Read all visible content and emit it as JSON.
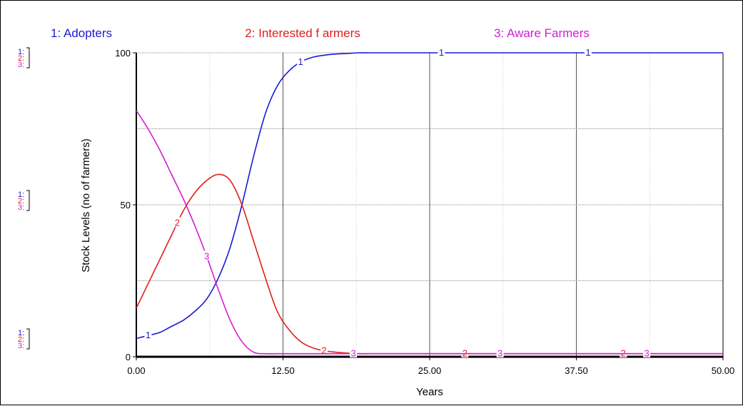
{
  "chart_data": {
    "type": "line",
    "title": "",
    "xlabel": "Years",
    "ylabel": "Stock Levels (no of farmers)",
    "xlim": [
      0,
      50
    ],
    "ylim": [
      0,
      100
    ],
    "x_ticks": [
      "0.00",
      "12.50",
      "25.00",
      "37.50",
      "50.00"
    ],
    "y_ticks": [
      "0",
      "50",
      "100"
    ],
    "grid": true,
    "legend_position": "top",
    "side_scale_labels": [
      "1:",
      "2:",
      "3:"
    ],
    "series": [
      {
        "id": "1",
        "name": "1: Adopters",
        "color": "#1a1ad6",
        "x": [
          0,
          1,
          2,
          3,
          4,
          5,
          6,
          7,
          8,
          9,
          10,
          11,
          12,
          13,
          14,
          15,
          16,
          17,
          18,
          19,
          20,
          25,
          30,
          35,
          40,
          45,
          50
        ],
        "y": [
          6,
          7,
          8,
          10,
          12,
          15,
          19,
          26,
          36,
          50,
          66,
          80,
          89,
          94,
          97,
          98.5,
          99.2,
          99.6,
          99.8,
          100,
          100,
          100,
          100,
          100,
          100,
          100,
          100
        ],
        "markers_x": [
          1,
          14,
          26,
          38.5
        ]
      },
      {
        "id": "2",
        "name": "2: Interested f armers",
        "color": "#e21d1d",
        "x": [
          0,
          1,
          2,
          3,
          4,
          5,
          6,
          7,
          8,
          9,
          10,
          11,
          12,
          13,
          14,
          15,
          16,
          17,
          18,
          19,
          20,
          25,
          30,
          35,
          40,
          45,
          50
        ],
        "y": [
          16,
          24,
          32,
          40,
          48,
          54,
          58,
          60,
          58,
          50,
          38,
          26,
          15,
          9,
          5,
          3,
          2,
          1.5,
          1.2,
          1,
          1,
          1,
          1,
          1,
          1,
          1,
          1
        ],
        "markers_x": [
          3.5,
          16,
          28,
          41.5
        ]
      },
      {
        "id": "3",
        "name": "3: Aware Farmers",
        "color": "#d21ed2",
        "x": [
          0,
          1,
          2,
          3,
          4,
          5,
          6,
          7,
          8,
          9,
          10,
          11,
          12,
          13,
          14,
          15,
          16,
          17,
          18,
          19,
          20,
          25,
          30,
          35,
          40,
          45,
          50
        ],
        "y": [
          81,
          75,
          68,
          60,
          52,
          43,
          33,
          22,
          12,
          5,
          1.5,
          1,
          1,
          1,
          1,
          1,
          1,
          1,
          1,
          1,
          1,
          1,
          1,
          1,
          1,
          1,
          1
        ],
        "markers_x": [
          6,
          18.5,
          31,
          43.5
        ]
      }
    ]
  }
}
